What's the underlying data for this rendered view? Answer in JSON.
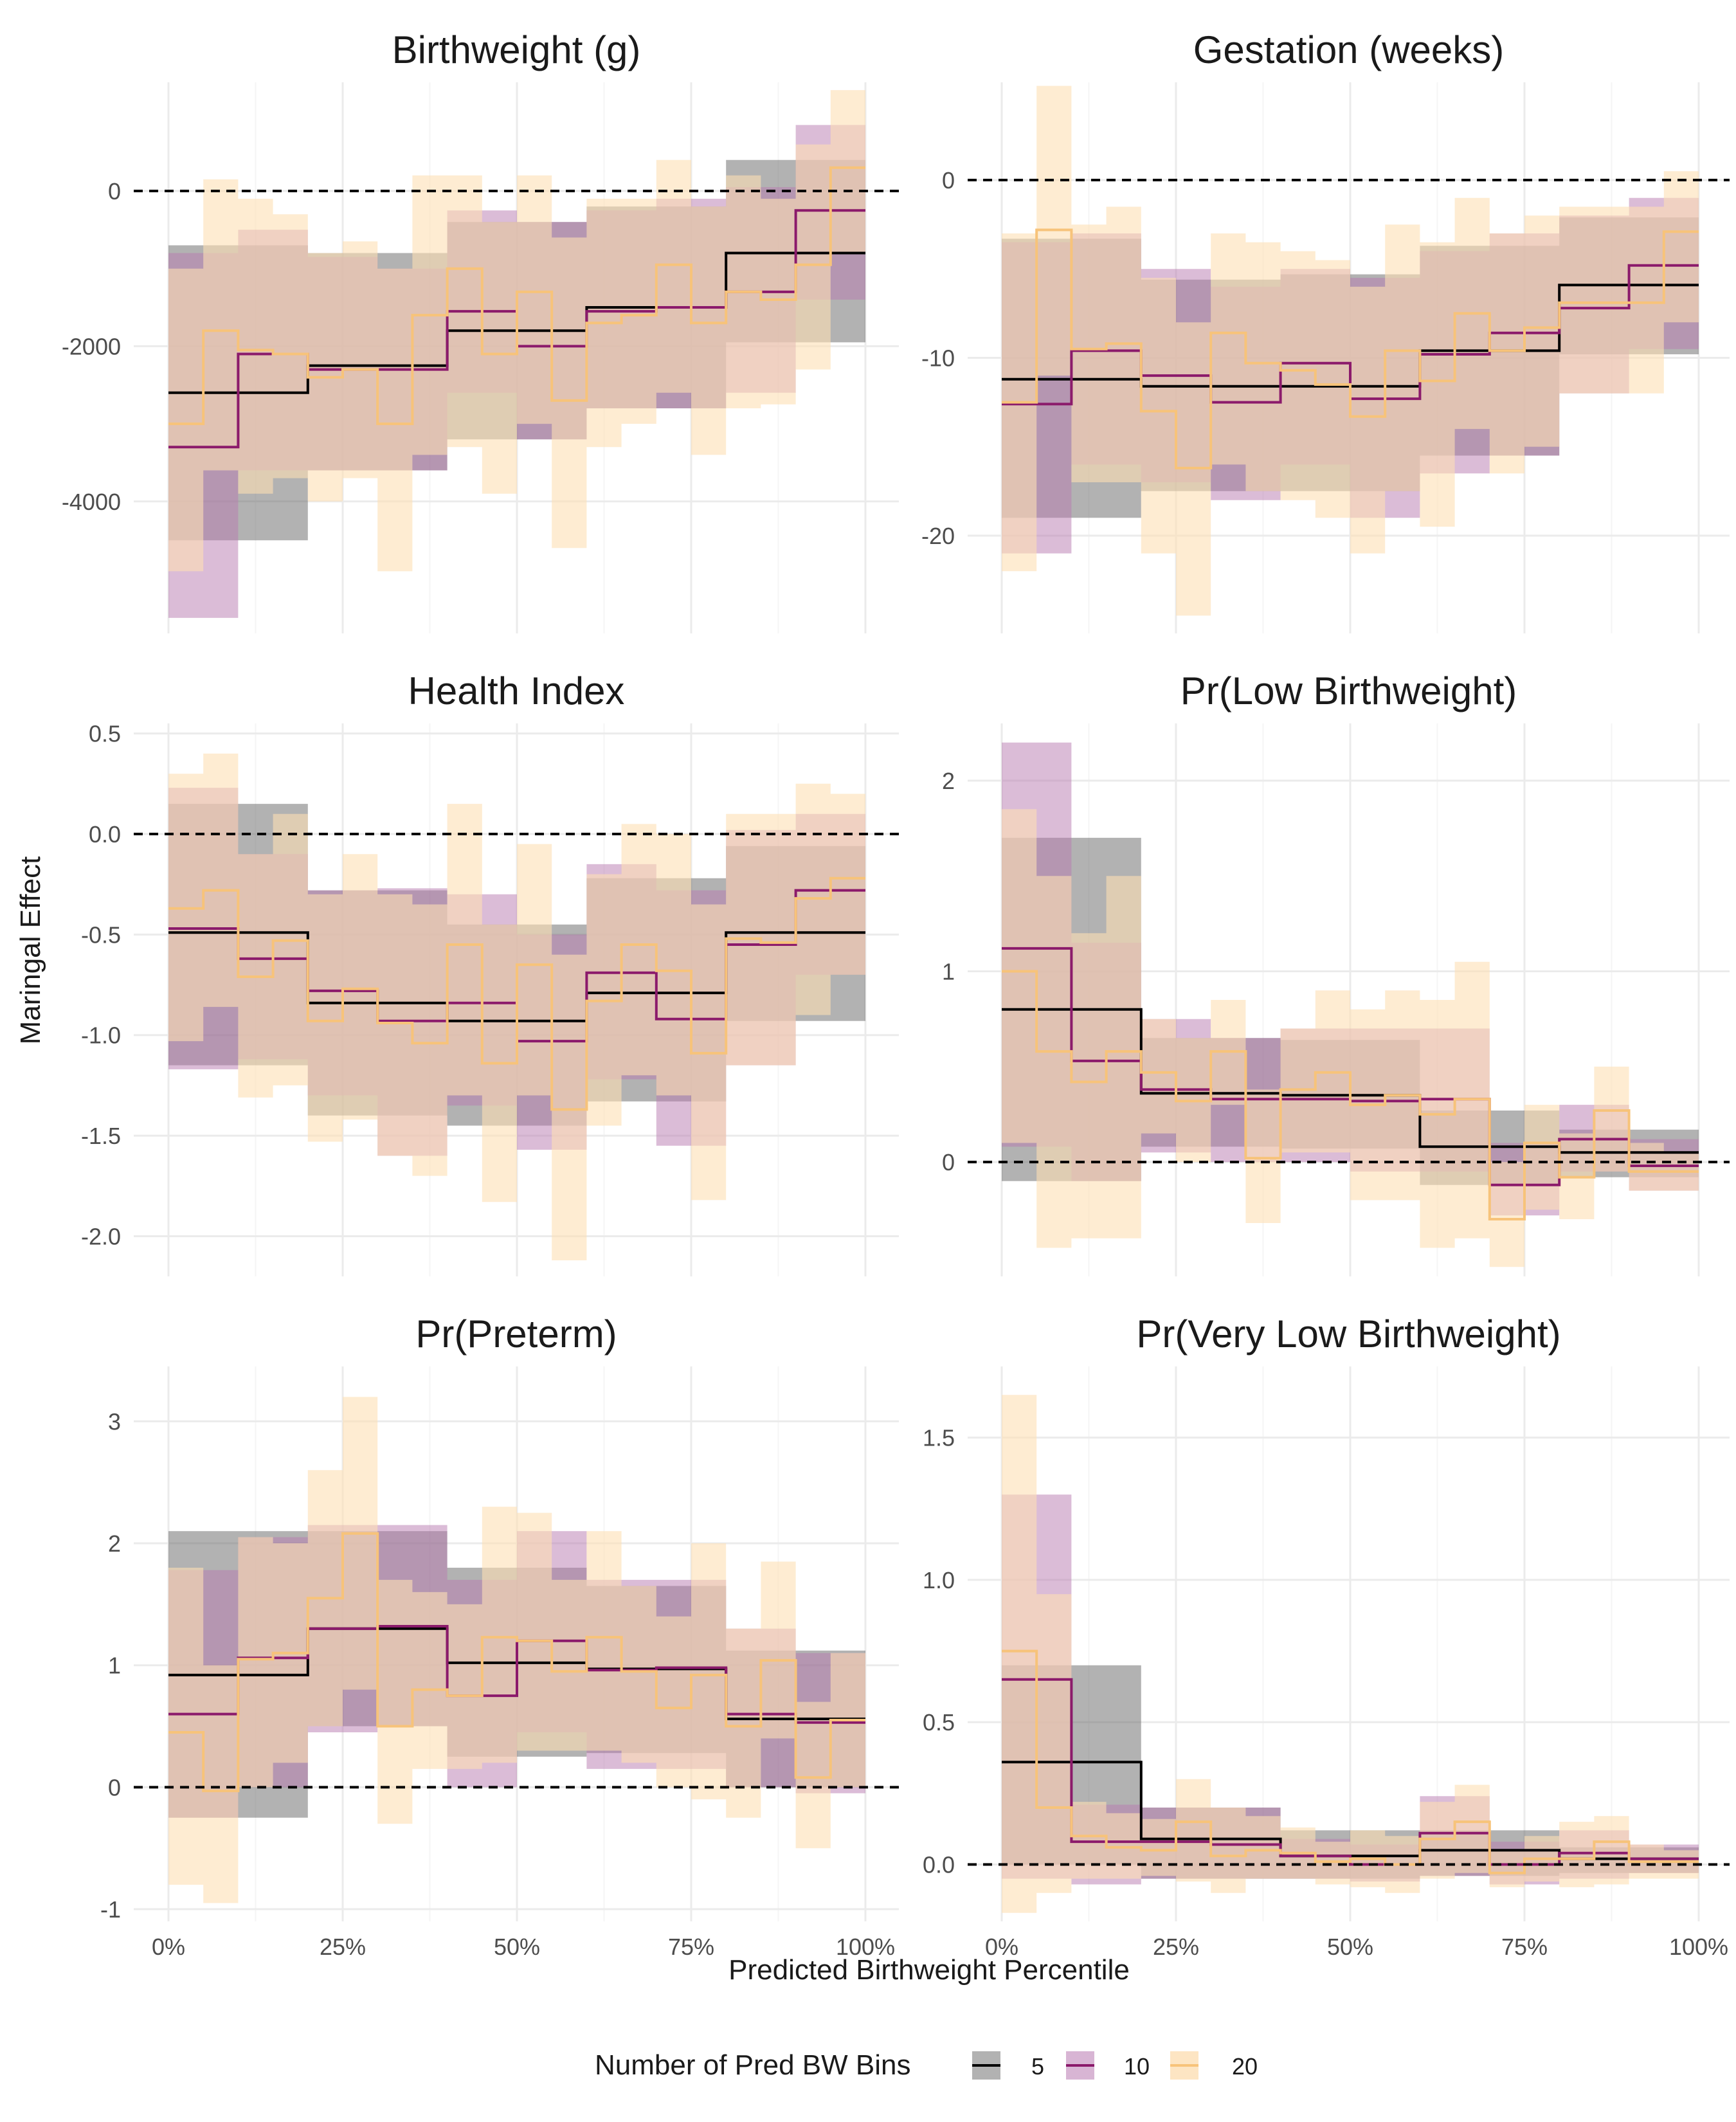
{
  "figure": {
    "x_axis_label": "Predicted Birthweight Percentile",
    "y_axis_label": "Maringal Effect",
    "legend": {
      "title": "Number of Pred BW Bins",
      "items": [
        {
          "label": "5",
          "color": "#000000",
          "fill": "#666666"
        },
        {
          "label": "10",
          "color": "#8B1A6B",
          "fill": "#B879B0"
        },
        {
          "label": "20",
          "color": "#F7C37A",
          "fill": "#FDDFB4"
        }
      ],
      "placement": "bottom"
    },
    "grid": true
  },
  "chart_data": [
    {
      "type": "line",
      "title": "Birthweight (g)",
      "xlim": [
        0,
        100
      ],
      "ylim": [
        -5700,
        1400
      ],
      "yticks": [
        {
          "v": 0,
          "label": "0"
        },
        {
          "v": -2000,
          "label": "-2000"
        },
        {
          "v": -4000,
          "label": "-4000"
        }
      ],
      "ref_line": 0,
      "series": [
        {
          "name": "5",
          "n": 5,
          "est": [
            -2600,
            -2250,
            -1800,
            -1500,
            -800
          ],
          "lo": [
            -4500,
            -3600,
            -3200,
            -2800,
            -1950
          ],
          "hi": [
            -700,
            -800,
            -400,
            -200,
            400
          ]
        },
        {
          "name": "10",
          "n": 10,
          "est": [
            -3300,
            -2100,
            -2300,
            -2300,
            -1550,
            -2000,
            -1550,
            -1500,
            -1300,
            -250
          ],
          "lo": [
            -5500,
            -3600,
            -3600,
            -3600,
            -2600,
            -3200,
            -2800,
            -2800,
            -2600,
            -1400
          ],
          "hi": [
            -800,
            -500,
            -850,
            -1000,
            -250,
            -400,
            -250,
            -100,
            50,
            850
          ]
        },
        {
          "name": "20",
          "n": 20,
          "est": [
            -3000,
            -1800,
            -2050,
            -2100,
            -2400,
            -2300,
            -3000,
            -1600,
            -1000,
            -2100,
            -1300,
            -2700,
            -1700,
            -1600,
            -950,
            -1700,
            -1300,
            -1400,
            -950,
            300
          ],
          "lo": [
            -4900,
            -3600,
            -3900,
            -3700,
            -4000,
            -3700,
            -4900,
            -3400,
            -3300,
            -3900,
            -3000,
            -4600,
            -3300,
            -3000,
            -2600,
            -3400,
            -2800,
            -2750,
            -2300,
            -800
          ],
          "hi": [
            -1000,
            150,
            -100,
            -300,
            -800,
            -650,
            -1000,
            200,
            200,
            -400,
            200,
            -600,
            -100,
            -100,
            400,
            -200,
            200,
            -100,
            600,
            1300
          ]
        }
      ]
    },
    {
      "type": "line",
      "title": "Gestation (weeks)",
      "xlim": [
        0,
        100
      ],
      "ylim": [
        -25.5,
        5.5
      ],
      "yticks": [
        {
          "v": 0,
          "label": "0"
        },
        {
          "v": -10,
          "label": "-10"
        },
        {
          "v": -20,
          "label": "-20"
        }
      ],
      "ref_line": 0,
      "series": [
        {
          "name": "5",
          "n": 5,
          "est": [
            -11.2,
            -11.6,
            -11.6,
            -9.6,
            -5.9
          ],
          "lo": [
            -19,
            -17.5,
            -17.5,
            -15.5,
            -9.8
          ],
          "hi": [
            -3.3,
            -5.6,
            -5.3,
            -3.7,
            -2.1
          ]
        },
        {
          "name": "10",
          "n": 10,
          "est": [
            -12.6,
            -9.6,
            -11.0,
            -12.5,
            -10.3,
            -12.3,
            -9.8,
            -8.6,
            -7.2,
            -4.8
          ],
          "lo": [
            -21,
            -16,
            -17,
            -18,
            -16,
            -19,
            -16.5,
            -15.5,
            -12,
            -9.5
          ],
          "hi": [
            -3.5,
            -3,
            -5,
            -6,
            -5,
            -5.5,
            -4,
            -3,
            -2,
            -1
          ]
        },
        {
          "name": "20",
          "n": 20,
          "est": [
            -12.5,
            -2.8,
            -9.5,
            -9.2,
            -13.0,
            -16.2,
            -8.6,
            -10.3,
            -10.7,
            -11.5,
            -13.3,
            -9.6,
            -11.3,
            -7.5,
            -9.6,
            -8.3,
            -6.9,
            -6.9,
            -6.9,
            -2.9
          ],
          "lo": [
            -22,
            -11,
            -17,
            -17,
            -21,
            -24.5,
            -16,
            -17.5,
            -18,
            -19,
            -21,
            -17.5,
            -19.5,
            -14,
            -16.5,
            -15,
            -12,
            -12,
            -12,
            -8
          ],
          "hi": [
            -3,
            5.3,
            -2.5,
            -1.5,
            -5.5,
            -8,
            -3,
            -3.5,
            -4,
            -4.5,
            -6,
            -2.5,
            -3.5,
            -1,
            -3,
            -2,
            -1.5,
            -1.5,
            -1.5,
            0.5
          ]
        }
      ]
    },
    {
      "type": "line",
      "title": "Health Index",
      "xlim": [
        0,
        100
      ],
      "ylim": [
        -2.2,
        0.55
      ],
      "yticks": [
        {
          "v": 0.5,
          "label": "0.5"
        },
        {
          "v": 0.0,
          "label": "0.0"
        },
        {
          "v": -0.5,
          "label": "-0.5"
        },
        {
          "v": -1.0,
          "label": "-1.0"
        },
        {
          "v": -1.5,
          "label": "-1.5"
        },
        {
          "v": -2.0,
          "label": "-2.0"
        }
      ],
      "ref_line": 0,
      "series": [
        {
          "name": "5",
          "n": 5,
          "est": [
            -0.49,
            -0.84,
            -0.93,
            -0.79,
            -0.49
          ],
          "lo": [
            -1.15,
            -1.4,
            -1.45,
            -1.33,
            -0.93
          ],
          "hi": [
            0.15,
            -0.28,
            -0.45,
            -0.22,
            -0.06
          ]
        },
        {
          "name": "10",
          "n": 10,
          "est": [
            -0.47,
            -0.62,
            -0.78,
            -0.93,
            -0.84,
            -1.03,
            -0.69,
            -0.92,
            -0.55,
            -0.28
          ],
          "lo": [
            -1.17,
            -1.12,
            -1.3,
            -1.6,
            -1.35,
            -1.57,
            -1.22,
            -1.55,
            -1.15,
            -0.7
          ],
          "hi": [
            0.23,
            -0.1,
            -0.28,
            -0.27,
            -0.3,
            -0.5,
            -0.15,
            -0.28,
            0.02,
            0.1
          ]
        },
        {
          "name": "20",
          "n": 20,
          "est": [
            -0.37,
            -0.28,
            -0.71,
            -0.53,
            -0.93,
            -0.77,
            -0.94,
            -1.04,
            -0.55,
            -1.14,
            -0.65,
            -1.37,
            -0.83,
            -0.55,
            -0.68,
            -1.09,
            -0.52,
            -0.54,
            -0.32,
            -0.22
          ],
          "lo": [
            -1.03,
            -0.86,
            -1.31,
            -1.25,
            -1.53,
            -1.42,
            -1.6,
            -1.7,
            -1.3,
            -1.83,
            -1.3,
            -2.12,
            -1.45,
            -1.2,
            -1.3,
            -1.82,
            -1.15,
            -1.15,
            -0.9,
            -0.7
          ],
          "hi": [
            0.3,
            0.4,
            -0.1,
            0.1,
            -0.3,
            -0.1,
            -0.3,
            -0.35,
            0.15,
            -0.45,
            -0.05,
            -0.6,
            -0.2,
            0.05,
            0.0,
            -0.35,
            0.1,
            0.1,
            0.25,
            0.2
          ]
        }
      ]
    },
    {
      "type": "line",
      "title": "Pr(Low Birthweight)",
      "xlim": [
        0,
        100
      ],
      "ylim": [
        -0.6,
        2.3
      ],
      "yticks": [
        {
          "v": 2,
          "label": "2"
        },
        {
          "v": 1,
          "label": "1"
        },
        {
          "v": 0,
          "label": "0"
        }
      ],
      "ref_line": 0,
      "series": [
        {
          "name": "5",
          "n": 5,
          "est": [
            0.8,
            0.36,
            0.35,
            0.08,
            0.05
          ],
          "lo": [
            -0.1,
            0.08,
            0.07,
            -0.12,
            -0.08
          ],
          "hi": [
            1.7,
            0.65,
            0.64,
            0.27,
            0.17
          ]
        },
        {
          "name": "10",
          "n": 10,
          "est": [
            1.12,
            0.53,
            0.38,
            0.33,
            0.33,
            0.32,
            0.33,
            -0.12,
            0.12,
            -0.02
          ],
          "lo": [
            0.08,
            -0.1,
            0.05,
            0.0,
            0.0,
            -0.05,
            -0.05,
            -0.28,
            -0.05,
            -0.15
          ],
          "hi": [
            2.2,
            1.15,
            0.75,
            0.65,
            0.7,
            0.7,
            0.7,
            0.1,
            0.3,
            0.12
          ]
        },
        {
          "name": "20",
          "n": 20,
          "est": [
            1.0,
            0.58,
            0.42,
            0.58,
            0.47,
            0.32,
            0.58,
            0.02,
            0.38,
            0.47,
            0.3,
            0.35,
            0.25,
            0.33,
            -0.3,
            0.1,
            -0.08,
            0.27,
            -0.05,
            -0.05
          ],
          "lo": [
            0.1,
            -0.45,
            -0.4,
            -0.4,
            0.15,
            0.0,
            0.3,
            -0.32,
            0.05,
            0.05,
            -0.2,
            -0.2,
            -0.45,
            -0.4,
            -0.55,
            -0.25,
            -0.3,
            -0.05,
            -0.15,
            -0.15
          ],
          "hi": [
            1.85,
            1.5,
            1.2,
            1.5,
            0.75,
            0.65,
            0.85,
            0.38,
            0.7,
            0.9,
            0.8,
            0.9,
            0.85,
            1.05,
            0.0,
            0.3,
            0.15,
            0.5,
            0.1,
            0.05
          ]
        }
      ]
    },
    {
      "type": "line",
      "title": "Pr(Preterm)",
      "xlim": [
        0,
        100
      ],
      "ylim": [
        -1.1,
        3.45
      ],
      "yticks": [
        {
          "v": 3,
          "label": "3"
        },
        {
          "v": 2,
          "label": "2"
        },
        {
          "v": 1,
          "label": "1"
        },
        {
          "v": 0,
          "label": "0"
        },
        {
          "v": -1,
          "label": "-1"
        }
      ],
      "ref_line": 0,
      "series": [
        {
          "name": "5",
          "n": 5,
          "est": [
            0.92,
            1.3,
            1.02,
            0.97,
            0.56
          ],
          "lo": [
            -0.25,
            0.5,
            0.25,
            0.28,
            0.0
          ],
          "hi": [
            2.1,
            2.1,
            1.8,
            1.65,
            1.12
          ]
        },
        {
          "name": "10",
          "n": 10,
          "est": [
            0.6,
            1.06,
            1.3,
            1.32,
            0.75,
            1.2,
            0.96,
            0.98,
            0.6,
            0.53
          ],
          "lo": [
            -0.25,
            0.0,
            0.45,
            0.5,
            0.0,
            0.45,
            0.15,
            0.15,
            0.0,
            -0.05
          ],
          "hi": [
            1.78,
            2.05,
            2.15,
            2.15,
            1.7,
            2.1,
            1.7,
            1.7,
            1.3,
            1.1
          ]
        },
        {
          "name": "20",
          "n": 20,
          "est": [
            0.45,
            -0.03,
            1.05,
            1.1,
            1.55,
            2.08,
            0.5,
            0.8,
            0.75,
            1.23,
            1.2,
            0.95,
            1.23,
            0.95,
            0.65,
            0.92,
            0.5,
            1.04,
            0.08,
            0.55
          ],
          "lo": [
            -0.8,
            -0.95,
            0.0,
            0.2,
            0.5,
            0.8,
            -0.3,
            0.15,
            0.15,
            0.2,
            0.3,
            0.3,
            0.3,
            0.2,
            0.0,
            -0.1,
            -0.25,
            0.4,
            -0.5,
            0.0
          ],
          "hi": [
            1.8,
            1.0,
            2.05,
            2.0,
            2.6,
            3.2,
            1.7,
            1.6,
            1.5,
            2.3,
            2.25,
            1.7,
            2.1,
            1.65,
            1.4,
            2.0,
            1.3,
            1.85,
            0.7,
            1.1
          ]
        }
      ]
    },
    {
      "type": "line",
      "title": "Pr(Very Low Birthweight)",
      "xlim": [
        0,
        100
      ],
      "ylim": [
        -0.2,
        1.75
      ],
      "yticks": [
        {
          "v": 1.5,
          "label": "1.5"
        },
        {
          "v": 1.0,
          "label": "1.0"
        },
        {
          "v": 0.5,
          "label": "0.5"
        },
        {
          "v": 0.0,
          "label": "0.0"
        }
      ],
      "ref_line": 0,
      "series": [
        {
          "name": "5",
          "n": 5,
          "est": [
            0.36,
            0.09,
            0.03,
            0.05,
            0.02
          ],
          "lo": [
            0.0,
            -0.05,
            -0.05,
            -0.04,
            -0.03
          ],
          "hi": [
            0.7,
            0.2,
            0.12,
            0.12,
            0.06
          ]
        },
        {
          "name": "10",
          "n": 10,
          "est": [
            0.65,
            0.08,
            0.08,
            0.07,
            0.03,
            0.0,
            0.11,
            0.0,
            0.04,
            0.02
          ],
          "lo": [
            -0.05,
            -0.07,
            -0.05,
            -0.05,
            -0.05,
            -0.06,
            -0.04,
            -0.07,
            -0.05,
            -0.03
          ],
          "hi": [
            1.3,
            0.21,
            0.2,
            0.2,
            0.09,
            0.07,
            0.24,
            0.08,
            0.12,
            0.07
          ]
        },
        {
          "name": "20",
          "n": 20,
          "est": [
            0.75,
            0.2,
            0.1,
            0.06,
            0.05,
            0.15,
            0.03,
            0.05,
            0.04,
            0.01,
            0.02,
            0.0,
            0.09,
            0.15,
            -0.03,
            0.02,
            0.02,
            0.08,
            0.01,
            0.01
          ],
          "lo": [
            -0.17,
            -0.1,
            -0.05,
            -0.05,
            -0.04,
            -0.06,
            -0.1,
            -0.05,
            -0.05,
            -0.07,
            -0.08,
            -0.1,
            -0.05,
            -0.03,
            -0.08,
            -0.06,
            -0.08,
            -0.07,
            -0.05,
            -0.05
          ],
          "hi": [
            1.65,
            0.95,
            0.22,
            0.18,
            0.16,
            0.3,
            0.2,
            0.17,
            0.13,
            0.08,
            0.12,
            0.1,
            0.22,
            0.28,
            0.05,
            0.1,
            0.15,
            0.17,
            0.07,
            0.05
          ]
        }
      ]
    }
  ]
}
